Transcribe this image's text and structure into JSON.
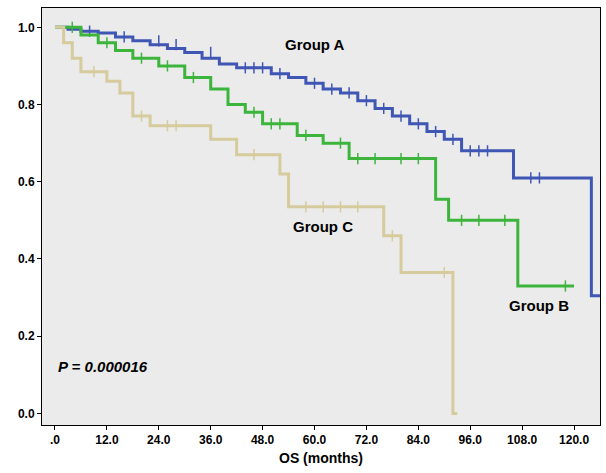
{
  "chart_data": {
    "type": "line",
    "line_style": "step",
    "x_label": "OS (months)",
    "xlim": [
      -3,
      126
    ],
    "xticks": [
      {
        "value": 0,
        "label": ".0"
      },
      {
        "value": 12,
        "label": "12.0"
      },
      {
        "value": 24,
        "label": "24.0"
      },
      {
        "value": 36,
        "label": "36.0"
      },
      {
        "value": 48,
        "label": "48.0"
      },
      {
        "value": 60,
        "label": "60.0"
      },
      {
        "value": 72,
        "label": "72.0"
      },
      {
        "value": 84,
        "label": "84.0"
      },
      {
        "value": 96,
        "label": "96.0"
      },
      {
        "value": 108,
        "label": "108.0"
      },
      {
        "value": 120,
        "label": "120.0"
      }
    ],
    "ylim": [
      -0.03,
      1.05
    ],
    "yticks": [
      {
        "value": 0,
        "label": "0.0"
      },
      {
        "value": 0.2,
        "label": "0.2"
      },
      {
        "value": 0.4,
        "label": "0.4"
      },
      {
        "value": 0.6,
        "label": "0.6"
      },
      {
        "value": 0.8,
        "label": "0.8"
      },
      {
        "value": 1,
        "label": "1.0"
      }
    ],
    "grid": false,
    "annotations": [
      "P = 0.000016"
    ],
    "series": [
      {
        "name": "Group A",
        "color": "#3f56b5",
        "x": [
          0,
          3,
          6,
          10,
          14,
          18,
          22,
          26,
          30,
          34,
          38,
          42,
          50,
          54,
          58,
          62,
          66,
          70,
          74,
          78,
          82,
          86,
          90,
          94,
          106,
          124,
          126
        ],
        "values": [
          1,
          0.995,
          0.99,
          0.985,
          0.975,
          0.965,
          0.955,
          0.945,
          0.935,
          0.92,
          0.905,
          0.895,
          0.88,
          0.87,
          0.855,
          0.84,
          0.83,
          0.81,
          0.79,
          0.77,
          0.75,
          0.73,
          0.71,
          0.68,
          0.61,
          0.305,
          0.305
        ],
        "censored_x": [
          8,
          16,
          24,
          28,
          36,
          44,
          46,
          48,
          52,
          60,
          64,
          68,
          72,
          76,
          80,
          84,
          88,
          92,
          96,
          98,
          100,
          110,
          112
        ],
        "censored_values": [
          0.99,
          0.975,
          0.965,
          0.955,
          0.935,
          0.895,
          0.895,
          0.895,
          0.88,
          0.855,
          0.84,
          0.83,
          0.81,
          0.79,
          0.77,
          0.75,
          0.73,
          0.71,
          0.68,
          0.68,
          0.68,
          0.61,
          0.61
        ]
      },
      {
        "name": "Group B",
        "color": "#3db53d",
        "x": [
          0,
          6,
          10,
          14,
          18,
          24,
          30,
          36,
          40,
          44,
          48,
          56,
          62,
          68,
          88,
          91,
          107,
          120
        ],
        "values": [
          1,
          0.98,
          0.96,
          0.94,
          0.92,
          0.9,
          0.87,
          0.84,
          0.8,
          0.78,
          0.75,
          0.72,
          0.7,
          0.66,
          0.555,
          0.5,
          0.33,
          0.33
        ],
        "censored_x": [
          4,
          12,
          20,
          26,
          32,
          46,
          50,
          52,
          58,
          66,
          70,
          74,
          80,
          84,
          94,
          98,
          104,
          118
        ],
        "censored_values": [
          1,
          0.96,
          0.92,
          0.9,
          0.87,
          0.78,
          0.75,
          0.75,
          0.72,
          0.7,
          0.66,
          0.66,
          0.66,
          0.66,
          0.5,
          0.5,
          0.5,
          0.33
        ]
      },
      {
        "name": "Group C",
        "color": "#d6cb9c",
        "x": [
          0,
          2,
          4,
          6,
          12,
          15,
          18,
          22,
          36,
          42,
          52,
          54,
          76,
          80,
          92,
          93
        ],
        "values": [
          1,
          0.96,
          0.92,
          0.885,
          0.86,
          0.83,
          0.77,
          0.745,
          0.71,
          0.67,
          0.62,
          0.535,
          0.46,
          0.365,
          0,
          0
        ],
        "censored_x": [
          9,
          20,
          26,
          28,
          46,
          58,
          62,
          66,
          70,
          78,
          90
        ],
        "censored_values": [
          0.885,
          0.77,
          0.745,
          0.745,
          0.67,
          0.535,
          0.535,
          0.535,
          0.535,
          0.46,
          0.365
        ]
      }
    ]
  }
}
